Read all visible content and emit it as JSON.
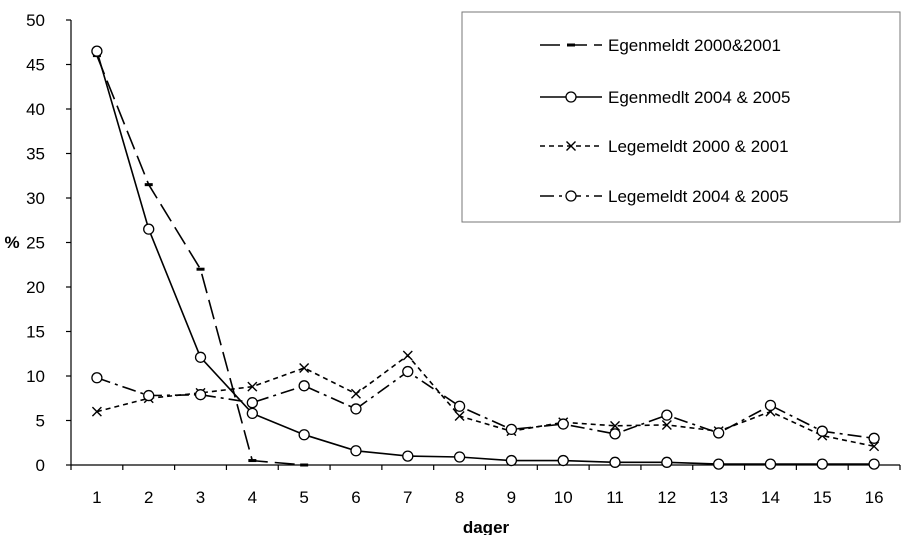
{
  "chart_data": {
    "type": "line",
    "title": "",
    "xlabel": "dager",
    "ylabel": "%",
    "x": [
      1,
      2,
      3,
      4,
      5,
      6,
      7,
      8,
      9,
      10,
      11,
      12,
      13,
      14,
      15,
      16
    ],
    "x_tick_labels": [
      "1",
      "2",
      "3",
      "4",
      "5",
      "6",
      "7",
      "8",
      "9",
      "10",
      "11",
      "12",
      "13",
      "14",
      "15",
      "16"
    ],
    "ylim": [
      0,
      50
    ],
    "y_ticks": [
      0,
      5,
      10,
      15,
      20,
      25,
      30,
      35,
      40,
      45,
      50
    ],
    "y_tick_labels": [
      "0",
      "5",
      "10",
      "15",
      "20",
      "25",
      "30",
      "35",
      "40",
      "45",
      "50"
    ],
    "grid": false,
    "legend_position": "top-right",
    "series": [
      {
        "name": "Egenmeldt 2000&2001",
        "style": "long-dash",
        "marker": "dash",
        "color": "#000000",
        "values": [
          46.0,
          31.5,
          22.0,
          0.5,
          0.0,
          null,
          null,
          null,
          null,
          null,
          null,
          null,
          null,
          null,
          null,
          null
        ]
      },
      {
        "name": "Egenmedlt 2004 & 2005",
        "style": "solid",
        "marker": "circle",
        "color": "#000000",
        "values": [
          46.5,
          26.5,
          12.1,
          5.8,
          3.4,
          1.6,
          1.0,
          0.9,
          0.5,
          0.5,
          0.3,
          0.3,
          0.1,
          0.1,
          0.1,
          0.1
        ]
      },
      {
        "name": "Legemeldt 2000 & 2001",
        "style": "short-dash",
        "marker": "cross",
        "color": "#000000",
        "values": [
          6.0,
          7.5,
          8.1,
          8.8,
          10.9,
          8.0,
          12.3,
          5.5,
          3.8,
          4.8,
          4.4,
          4.5,
          3.8,
          6.0,
          3.3,
          2.1
        ]
      },
      {
        "name": "Legemeldt 2004 & 2005",
        "style": "dash-dot",
        "marker": "circle",
        "color": "#000000",
        "values": [
          9.8,
          7.8,
          7.9,
          7.0,
          8.9,
          6.3,
          10.5,
          6.6,
          4.0,
          4.6,
          3.5,
          5.6,
          3.6,
          6.7,
          3.8,
          3.0
        ]
      }
    ]
  }
}
